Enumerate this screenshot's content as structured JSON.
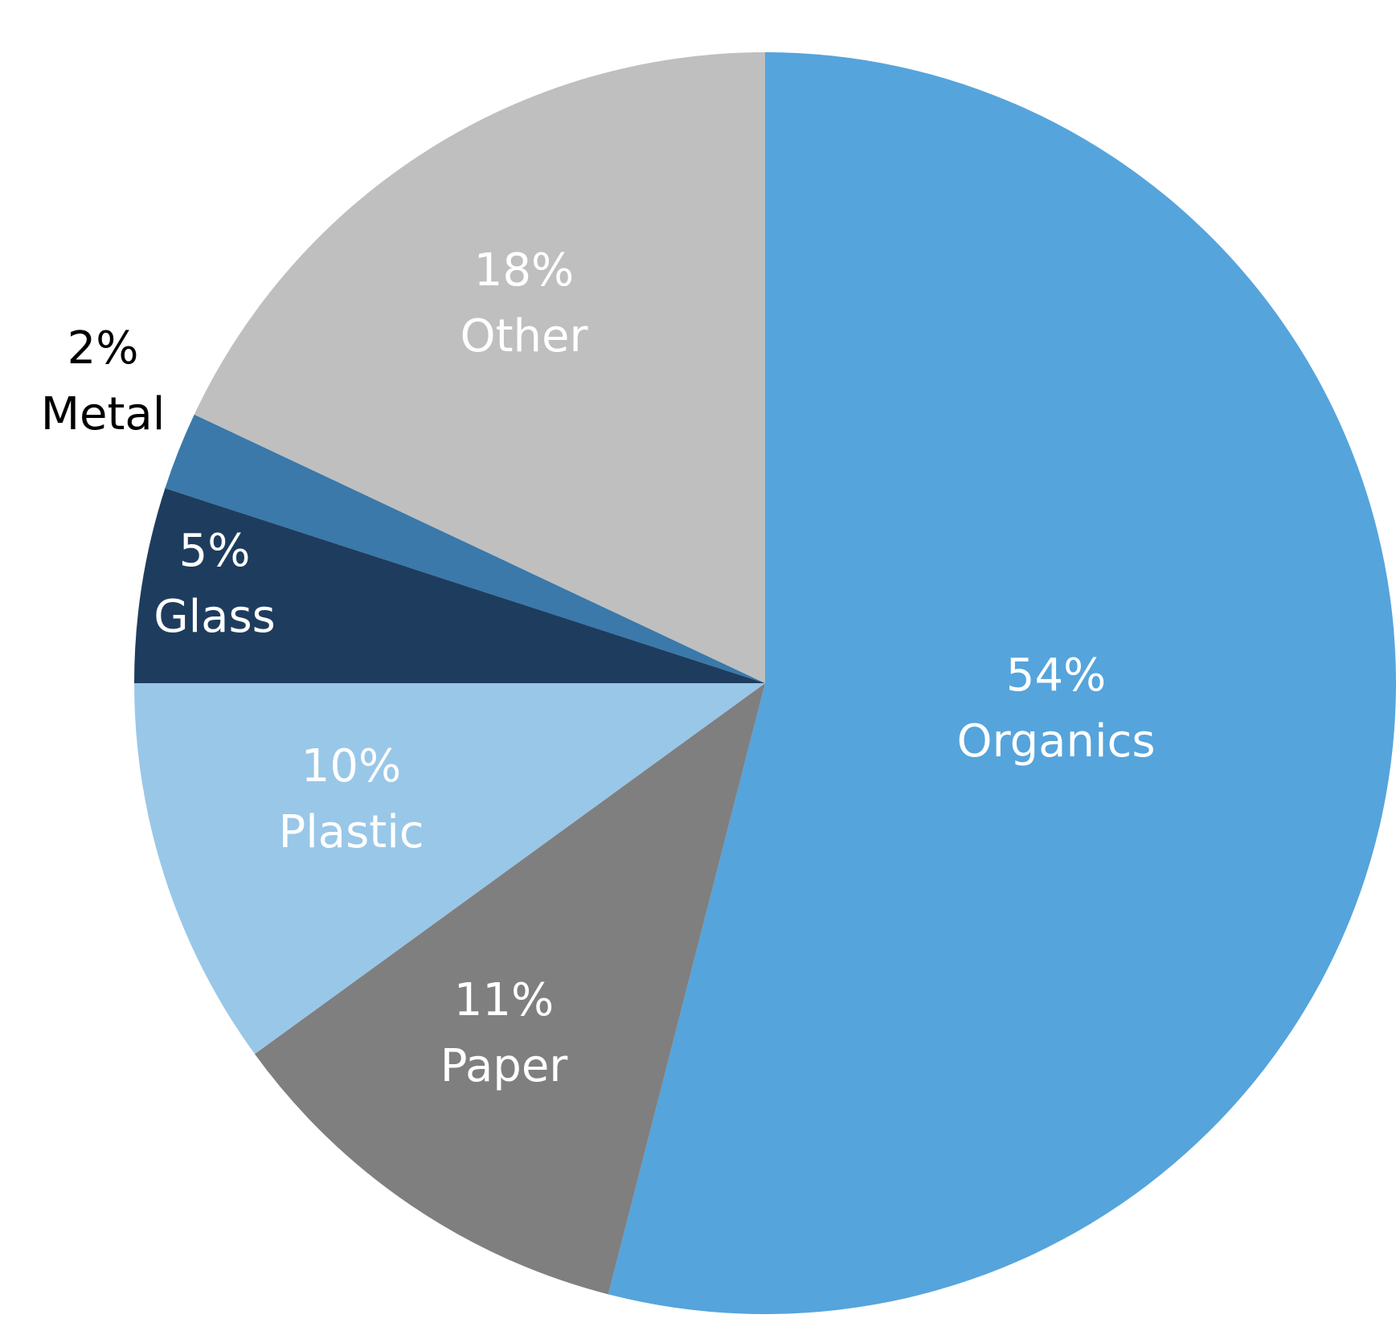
{
  "chart_data": {
    "type": "pie",
    "start": "12 o'clock",
    "direction": "clockwise",
    "slices": [
      {
        "label": "Organics",
        "value": 54,
        "value_label": "54%",
        "color": "#55A4DC",
        "label_color": "#FFFFFF"
      },
      {
        "label": "Paper",
        "value": 11,
        "value_label": "11%",
        "color": "#7F7F7F",
        "label_color": "#FFFFFF"
      },
      {
        "label": "Plastic",
        "value": 10,
        "value_label": "10%",
        "color": "#99C7E8",
        "label_color": "#FFFFFF"
      },
      {
        "label": "Glass",
        "value": 5,
        "value_label": "5%",
        "color": "#1E3D5E",
        "label_color": "#FFFFFF"
      },
      {
        "label": "Metal",
        "value": 2,
        "value_label": "2%",
        "color": "#3A79AA",
        "label_color": "#000000"
      },
      {
        "label": "Other",
        "value": 18,
        "value_label": "18%",
        "color": "#BFBFBF",
        "label_color": "#FFFFFF"
      }
    ]
  }
}
